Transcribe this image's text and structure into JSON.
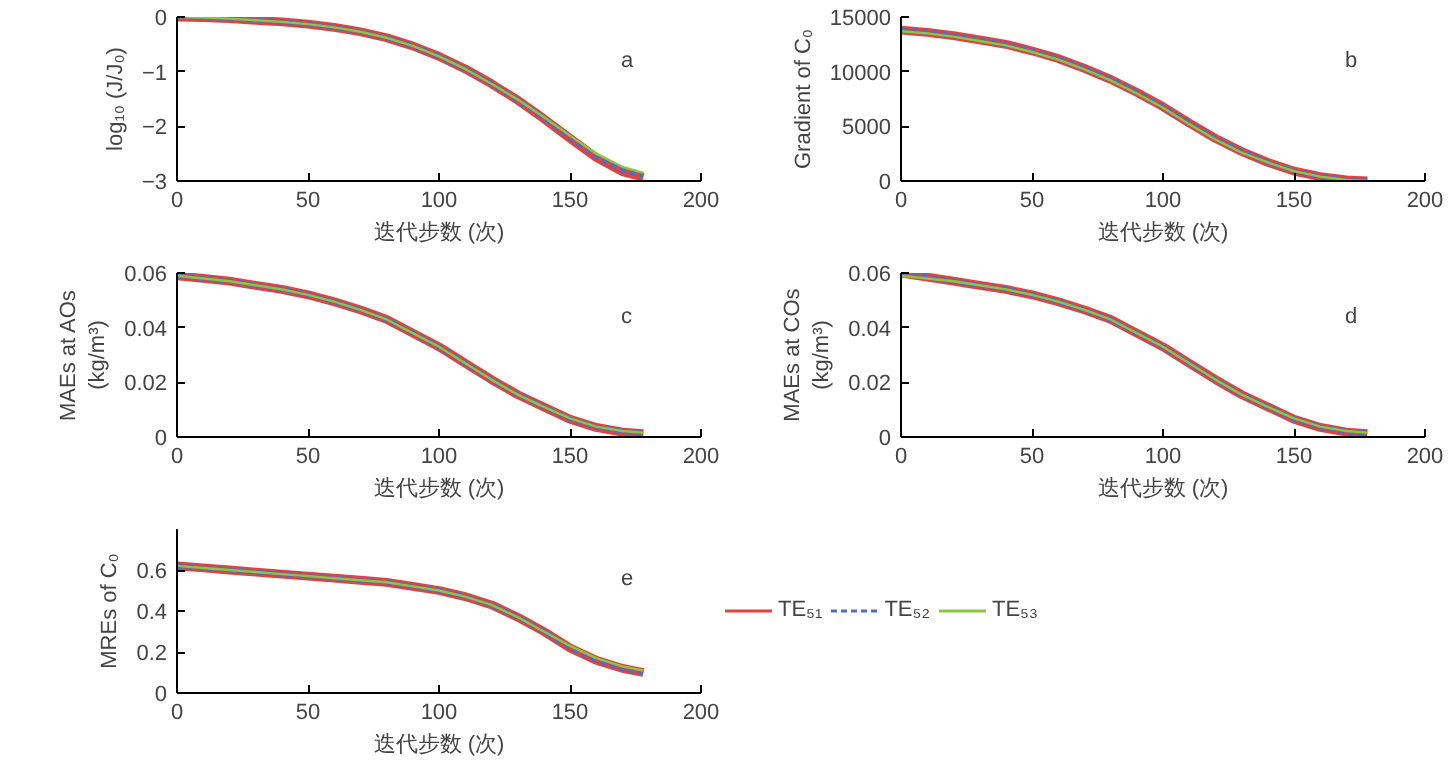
{
  "chart_data": [
    {
      "type": "line",
      "ylabel": "log₁₀ (J/J₀)",
      "xlabel": "迭代步数 (次)",
      "annotations": [
        "a"
      ],
      "xlim": [
        0,
        200
      ],
      "xticks": [
        0,
        50,
        100,
        150,
        200
      ],
      "ylim": [
        -3,
        0
      ],
      "yticks": [
        -3,
        -2,
        -1,
        0
      ],
      "grid": false,
      "x": [
        0,
        10,
        20,
        30,
        40,
        50,
        60,
        70,
        80,
        90,
        100,
        110,
        120,
        130,
        140,
        150,
        160,
        170,
        178
      ],
      "series": [
        {
          "color": "#e8403a",
          "line_style": "solid",
          "values": [
            0,
            -0.01,
            -0.03,
            -0.06,
            -0.09,
            -0.13,
            -0.19,
            -0.27,
            -0.38,
            -0.53,
            -0.72,
            -0.95,
            -1.22,
            -1.52,
            -1.86,
            -2.22,
            -2.57,
            -2.83,
            -2.93
          ]
        },
        {
          "color": "#4a6fc4",
          "line_style": "dashed",
          "values": [
            0,
            -0.01,
            -0.03,
            -0.06,
            -0.09,
            -0.13,
            -0.19,
            -0.27,
            -0.38,
            -0.53,
            -0.72,
            -0.95,
            -1.22,
            -1.52,
            -1.85,
            -2.2,
            -2.55,
            -2.8,
            -2.9
          ]
        },
        {
          "color": "#8cc63f",
          "line_style": "solid",
          "values": [
            0,
            -0.01,
            -0.03,
            -0.06,
            -0.09,
            -0.13,
            -0.19,
            -0.27,
            -0.38,
            -0.53,
            -0.72,
            -0.95,
            -1.22,
            -1.51,
            -1.83,
            -2.17,
            -2.5,
            -2.74,
            -2.85
          ]
        }
      ]
    },
    {
      "type": "line",
      "ylabel": "Gradient of C₀",
      "xlabel": "迭代步数 (次)",
      "annotations": [
        "b"
      ],
      "xlim": [
        0,
        200
      ],
      "xticks": [
        0,
        50,
        100,
        150,
        200
      ],
      "ylim": [
        0,
        15000
      ],
      "yticks": [
        0,
        5000,
        10000,
        15000
      ],
      "grid": false,
      "x": [
        0,
        10,
        20,
        30,
        40,
        50,
        60,
        70,
        80,
        90,
        100,
        110,
        120,
        130,
        140,
        150,
        160,
        170,
        178
      ],
      "series": [
        {
          "color": "#e8403a",
          "line_style": "solid",
          "values": [
            13800,
            13600,
            13300,
            12900,
            12500,
            11900,
            11200,
            10300,
            9300,
            8100,
            6800,
            5300,
            3900,
            2700,
            1700,
            900,
            400,
            100,
            0
          ]
        },
        {
          "color": "#4a6fc4",
          "line_style": "dashed",
          "values": [
            13800,
            13600,
            13300,
            12900,
            12500,
            11900,
            11200,
            10300,
            9300,
            8100,
            6800,
            5300,
            3900,
            2700,
            1700,
            900,
            400,
            100,
            0
          ]
        },
        {
          "color": "#8cc63f",
          "line_style": "solid",
          "values": [
            13700,
            13500,
            13200,
            12800,
            12400,
            11800,
            11100,
            10200,
            9200,
            8000,
            6700,
            5200,
            3800,
            2600,
            1700,
            900,
            400,
            100,
            0
          ]
        }
      ]
    },
    {
      "type": "line",
      "ylabel": "MAEs at AOs\n(kg/m³)",
      "xlabel": "迭代步数 (次)",
      "annotations": [
        "c"
      ],
      "xlim": [
        0,
        200
      ],
      "xticks": [
        0,
        50,
        100,
        150,
        200
      ],
      "ylim": [
        0,
        0.06
      ],
      "yticks": [
        0,
        0.02,
        0.04,
        0.06
      ],
      "grid": false,
      "x": [
        0,
        10,
        20,
        30,
        40,
        50,
        60,
        70,
        80,
        90,
        100,
        110,
        120,
        130,
        140,
        150,
        160,
        170,
        178
      ],
      "series": [
        {
          "color": "#e8403a",
          "line_style": "solid",
          "values": [
            0.059,
            0.058,
            0.057,
            0.0555,
            0.054,
            0.052,
            0.0495,
            0.0465,
            0.043,
            0.038,
            0.033,
            0.027,
            0.021,
            0.0155,
            0.011,
            0.0065,
            0.0035,
            0.0018,
            0.0012
          ]
        },
        {
          "color": "#4a6fc4",
          "line_style": "dashed",
          "values": [
            0.059,
            0.058,
            0.057,
            0.0555,
            0.054,
            0.052,
            0.0495,
            0.0465,
            0.043,
            0.038,
            0.033,
            0.027,
            0.021,
            0.0155,
            0.011,
            0.0066,
            0.0036,
            0.002,
            0.0014
          ]
        },
        {
          "color": "#8cc63f",
          "line_style": "solid",
          "values": [
            0.059,
            0.058,
            0.057,
            0.0555,
            0.054,
            0.052,
            0.0495,
            0.0465,
            0.043,
            0.038,
            0.033,
            0.027,
            0.021,
            0.0155,
            0.011,
            0.0068,
            0.0038,
            0.0022,
            0.0016
          ]
        }
      ]
    },
    {
      "type": "line",
      "ylabel": "MAEs at COs\n(kg/m³)",
      "xlabel": "迭代步数 (次)",
      "annotations": [
        "d"
      ],
      "xlim": [
        0,
        200
      ],
      "xticks": [
        0,
        50,
        100,
        150,
        200
      ],
      "ylim": [
        0,
        0.06
      ],
      "yticks": [
        0,
        0.02,
        0.04,
        0.06
      ],
      "grid": false,
      "x": [
        0,
        10,
        20,
        30,
        40,
        50,
        60,
        70,
        80,
        90,
        100,
        110,
        120,
        130,
        140,
        150,
        160,
        170,
        178
      ],
      "series": [
        {
          "color": "#e8403a",
          "line_style": "solid",
          "values": [
            0.06,
            0.0585,
            0.057,
            0.0555,
            0.054,
            0.052,
            0.0495,
            0.0465,
            0.043,
            0.038,
            0.033,
            0.027,
            0.021,
            0.0155,
            0.011,
            0.0065,
            0.0035,
            0.0018,
            0.0012
          ]
        },
        {
          "color": "#4a6fc4",
          "line_style": "dashed",
          "values": [
            0.06,
            0.0585,
            0.057,
            0.0555,
            0.054,
            0.052,
            0.0495,
            0.0465,
            0.043,
            0.038,
            0.033,
            0.027,
            0.021,
            0.0155,
            0.011,
            0.0066,
            0.0036,
            0.002,
            0.0014
          ]
        },
        {
          "color": "#8cc63f",
          "line_style": "solid",
          "values": [
            0.059,
            0.058,
            0.057,
            0.0555,
            0.054,
            0.052,
            0.0495,
            0.0465,
            0.043,
            0.038,
            0.033,
            0.027,
            0.021,
            0.0155,
            0.011,
            0.0068,
            0.0038,
            0.0022,
            0.0016
          ]
        }
      ]
    },
    {
      "type": "line",
      "ylabel": "MREs of C₀",
      "xlabel": "迭代步数 (次)",
      "annotations": [
        "e"
      ],
      "xlim": [
        0,
        200
      ],
      "xticks": [
        0,
        50,
        100,
        150,
        200
      ],
      "ylim": [
        0,
        0.8
      ],
      "yticks": [
        0,
        0.2,
        0.4,
        0.6
      ],
      "grid": false,
      "legend": "right",
      "x": [
        0,
        10,
        20,
        30,
        40,
        50,
        60,
        70,
        80,
        90,
        100,
        110,
        120,
        130,
        140,
        150,
        160,
        170,
        178
      ],
      "series": [
        {
          "name": "TE₅₁",
          "color": "#e8403a",
          "line_style": "solid",
          "values": [
            0.62,
            0.61,
            0.6,
            0.59,
            0.58,
            0.57,
            0.56,
            0.55,
            0.54,
            0.52,
            0.5,
            0.47,
            0.43,
            0.37,
            0.3,
            0.22,
            0.16,
            0.12,
            0.1
          ]
        },
        {
          "name": "TE₅₂",
          "color": "#4a6fc4",
          "line_style": "dashed",
          "values": [
            0.62,
            0.61,
            0.6,
            0.59,
            0.58,
            0.57,
            0.56,
            0.55,
            0.54,
            0.52,
            0.5,
            0.47,
            0.43,
            0.37,
            0.3,
            0.22,
            0.16,
            0.12,
            0.1
          ]
        },
        {
          "name": "TE₅₃",
          "color": "#8cc63f",
          "line_style": "solid",
          "values": [
            0.62,
            0.61,
            0.6,
            0.59,
            0.58,
            0.57,
            0.56,
            0.55,
            0.54,
            0.52,
            0.5,
            0.47,
            0.43,
            0.37,
            0.3,
            0.23,
            0.17,
            0.13,
            0.11
          ]
        }
      ]
    }
  ]
}
